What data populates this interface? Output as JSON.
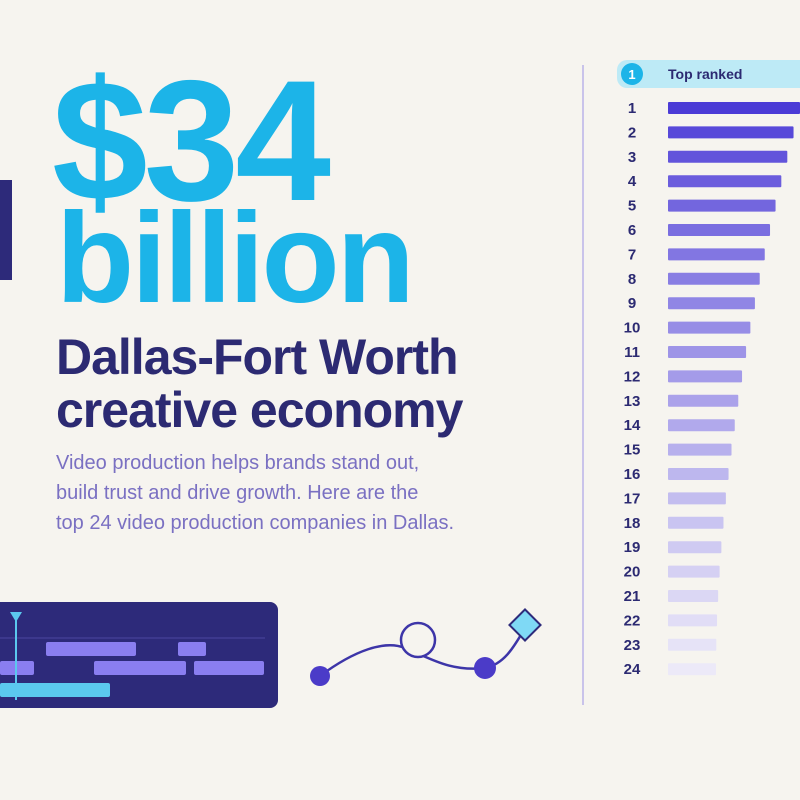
{
  "headline": {
    "amount": "$34",
    "unit": "billion"
  },
  "title": [
    "Dallas-Fort Worth",
    "creative economy"
  ],
  "description": [
    "Video production helps brands stand out,",
    "build trust and drive growth. Here are the",
    "top 24 video production companies in Dallas."
  ],
  "ranking": {
    "badge": "1",
    "label": "Top ranked",
    "ranks": [
      1,
      2,
      3,
      4,
      5,
      6,
      7,
      8,
      9,
      10,
      11,
      12,
      13,
      14,
      15,
      16,
      17,
      18,
      19,
      20,
      21,
      22,
      23,
      24
    ]
  }
}
